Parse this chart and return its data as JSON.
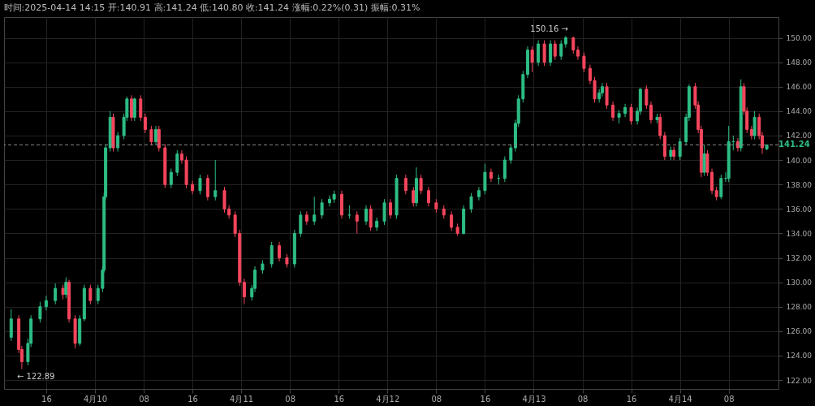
{
  "chart_data": {
    "type": "candlestick",
    "title": "时间:2025-04-14 14:15  开:140.91  高:141.24  低:140.80  收:141.24  涨幅:0.22%(0.31)  振幅:0.31%",
    "colors": [
      "#2ebd85",
      "#f6465d",
      "#f6465d",
      "#2ebd85",
      "#2ebd85",
      "#2ebd85",
      "#2ebd85",
      "#2ebd85",
      "#f6465d",
      "#2ebd85",
      "#f6465d",
      "#f6465d",
      "#2ebd85",
      "#2ebd85",
      "#f6465d",
      "#2ebd85",
      "#2ebd85",
      "#2ebd85",
      "#2ebd85",
      "#2ebd85",
      "#f6465d",
      "#2ebd85",
      "#2ebd85",
      "#2ebd85",
      "#f6465d",
      "#2ebd85",
      "#f6465d",
      "#f6465d",
      "#f6465d",
      "#2ebd85",
      "#f6465d",
      "#f6465d",
      "#2ebd85",
      "#2ebd85",
      "#f6465d",
      "#f6465d",
      "#f6465d",
      "#2ebd85",
      "#f6465d",
      "#2ebd85",
      "#f6465d",
      "#f6465d",
      "#f6465d",
      "#f6465d",
      "#f6465d",
      "#2ebd85",
      "#2ebd85",
      "#2ebd85",
      "#2ebd85",
      "#f6465d",
      "#f6465d",
      "#2ebd85",
      "#2ebd85",
      "#f6465d",
      "#2ebd85",
      "#2ebd85",
      "#2ebd85",
      "#2ebd85",
      "#f6465d",
      "#2ebd85",
      "#f6465d",
      "#2ebd85",
      "#f6465d",
      "#2ebd85",
      "#2ebd85",
      "#f6465d",
      "#2ebd85",
      "#f6465d",
      "#f6465d",
      "#2ebd85",
      "#f6465d",
      "#f6465d",
      "#f6465d",
      "#f6465d",
      "#f6465d",
      "#f6465d",
      "#2ebd85",
      "#2ebd85",
      "#2ebd85",
      "#2ebd85",
      "#f6465d",
      "#2ebd85",
      "#2ebd85",
      "#2ebd85",
      "#2ebd85",
      "#2ebd85",
      "#2ebd85",
      "#2ebd85",
      "#f6465d",
      "#2ebd85",
      "#f6465d",
      "#2ebd85",
      "#f6465d",
      "#2ebd85",
      "#2ebd85",
      "#f6465d",
      "#f6465d",
      "#f6465d",
      "#f6465d",
      "#f6465d",
      "#2ebd85",
      "#2ebd85",
      "#f6465d",
      "#f6465d",
      "#2ebd85",
      "#2ebd85",
      "#f6465d",
      "#2ebd85",
      "#2ebd85",
      "#f6465d",
      "#f6465d",
      "#2ebd85",
      "#f6465d",
      "#f6465d",
      "#2ebd85",
      "#f6465d",
      "#2ebd85",
      "#2ebd85",
      "#2ebd85",
      "#f6465d",
      "#f6465d",
      "#f6465d",
      "#2ebd85",
      "#f6465d",
      "#f6465d",
      "#f6465d",
      "#2ebd85",
      "#2ebd85",
      "#2ebd85",
      "#2ebd85",
      "#f6465d",
      "#2ebd85",
      "#f6465d",
      "#f6465d",
      "#f6465d",
      "#2ebd85",
      "#f6465d",
      "#f6465d",
      "#2ebd85"
    ],
    "x": [
      "2025-04-09T10:15",
      "2025-04-09T11:30",
      "2025-04-09T12:00",
      "2025-04-09T13:00",
      "2025-04-09T13:30",
      "2025-04-09T15:00",
      "2025-04-09T16:00",
      "2025-04-09T17:30",
      "2025-04-09T18:45",
      "2025-04-09T19:15",
      "2025-04-09T19:45",
      "2025-04-09T20:45",
      "2025-04-09T21:30",
      "2025-04-09T22:15",
      "2025-04-09T23:15",
      "2025-04-10T00:30",
      "2025-04-10T01:15",
      "2025-04-10T01:30",
      "2025-04-10T01:45",
      "2025-04-10T02:30",
      "2025-04-10T03:00",
      "2025-04-10T03:45",
      "2025-04-10T04:45",
      "2025-04-10T05:15",
      "2025-04-10T06:00",
      "2025-04-10T06:30",
      "2025-04-10T07:30",
      "2025-04-10T08:15",
      "2025-04-10T09:15",
      "2025-04-10T10:00",
      "2025-04-10T10:30",
      "2025-04-10T11:30",
      "2025-04-10T12:30",
      "2025-04-10T13:30",
      "2025-04-10T14:15",
      "2025-04-10T15:00",
      "2025-04-10T16:00",
      "2025-04-10T17:15",
      "2025-04-10T18:30",
      "2025-04-10T19:45",
      "2025-04-10T21:15",
      "2025-04-10T22:00",
      "2025-04-10T23:00",
      "2025-04-10T23:45",
      "2025-04-11T00:30",
      "2025-04-11T01:45",
      "2025-04-11T02:15",
      "2025-04-11T03:30",
      "2025-04-11T05:00",
      "2025-04-11T06:15",
      "2025-04-11T07:30",
      "2025-04-11T08:45",
      "2025-04-11T09:45",
      "2025-04-11T10:45",
      "2025-04-11T12:00",
      "2025-04-11T13:15",
      "2025-04-11T14:30",
      "2025-04-11T15:15",
      "2025-04-11T16:30",
      "2025-04-11T17:45",
      "2025-04-11T19:00",
      "2025-04-11T20:30",
      "2025-04-11T21:15",
      "2025-04-11T22:15",
      "2025-04-11T23:30",
      "2025-04-12T00:30",
      "2025-04-12T01:30",
      "2025-04-12T03:00",
      "2025-04-12T04:15",
      "2025-04-12T04:45",
      "2025-04-12T05:30",
      "2025-04-12T06:45",
      "2025-04-12T08:00",
      "2025-04-12T09:15",
      "2025-04-12T10:30",
      "2025-04-12T11:30",
      "2025-04-12T12:30",
      "2025-04-12T13:45",
      "2025-04-12T15:00",
      "2025-04-12T16:00",
      "2025-04-12T17:00",
      "2025-04-12T18:15",
      "2025-04-12T19:15",
      "2025-04-12T20:15",
      "2025-04-12T21:00",
      "2025-04-12T21:30",
      "2025-04-12T22:15",
      "2025-04-12T23:00",
      "2025-04-12T23:45",
      "2025-04-13T00:45",
      "2025-04-13T01:45",
      "2025-04-13T02:45",
      "2025-04-13T03:30",
      "2025-04-13T04:30",
      "2025-04-13T05:15",
      "2025-04-13T06:30",
      "2025-04-13T07:15",
      "2025-04-13T08:15",
      "2025-04-13T09:15",
      "2025-04-13T10:00",
      "2025-04-13T10:45",
      "2025-04-13T11:15",
      "2025-04-13T12:00",
      "2025-04-13T13:00",
      "2025-04-13T14:00",
      "2025-04-13T15:00",
      "2025-04-13T16:00",
      "2025-04-13T17:00",
      "2025-04-13T17:30",
      "2025-04-13T18:30",
      "2025-04-13T19:15",
      "2025-04-13T20:15",
      "2025-04-13T20:45",
      "2025-04-13T21:30",
      "2025-04-13T22:30",
      "2025-04-13T23:00",
      "2025-04-14T00:00",
      "2025-04-14T01:00",
      "2025-04-14T01:30",
      "2025-04-14T02:30",
      "2025-04-14T03:00",
      "2025-04-14T03:30",
      "2025-04-14T04:00",
      "2025-04-14T04:30",
      "2025-04-14T05:15",
      "2025-04-14T06:00",
      "2025-04-14T06:45",
      "2025-04-14T07:30",
      "2025-04-14T08:00",
      "2025-04-14T08:45",
      "2025-04-14T09:30",
      "2025-04-14T10:00",
      "2025-04-14T10:30",
      "2025-04-14T11:00",
      "2025-04-14T11:45",
      "2025-04-14T12:15",
      "2025-04-14T13:00",
      "2025-04-14T13:30",
      "2025-04-14T14:15"
    ],
    "ohlc": [
      [
        125.5,
        127.8,
        125.2,
        127
      ],
      [
        127,
        127.3,
        124.2,
        124.5
      ],
      [
        124.5,
        124.8,
        122.89,
        123.5
      ],
      [
        123.5,
        125.4,
        123.2,
        125
      ],
      [
        125,
        127.3,
        124.7,
        127
      ],
      [
        127,
        128.4,
        126.7,
        128
      ],
      [
        128,
        128.9,
        127.7,
        128.5
      ],
      [
        128.5,
        129.9,
        128.2,
        129.5
      ],
      [
        129.5,
        129.8,
        128.6,
        129
      ],
      [
        129,
        130.4,
        128.7,
        130
      ],
      [
        130,
        130.2,
        126.7,
        127
      ],
      [
        127,
        127.3,
        124.6,
        125
      ],
      [
        125,
        127.3,
        124.8,
        127
      ],
      [
        127,
        129.8,
        126.8,
        129.5
      ],
      [
        129.5,
        129.8,
        128.2,
        128.5
      ],
      [
        128.5,
        129.8,
        128.2,
        129.5
      ],
      [
        129.5,
        131.3,
        129.2,
        131
      ],
      [
        131,
        137.3,
        130.8,
        137
      ],
      [
        137,
        141.3,
        136.8,
        141
      ],
      [
        141,
        144,
        140.7,
        143.5
      ],
      [
        143.5,
        143.8,
        140.7,
        141
      ],
      [
        141,
        142.3,
        140.7,
        142
      ],
      [
        142,
        143.8,
        141.7,
        143.5
      ],
      [
        143.5,
        145.2,
        143.2,
        145
      ],
      [
        145,
        145.3,
        143.2,
        143.5
      ],
      [
        143.5,
        145.1,
        143.2,
        145
      ],
      [
        145,
        145.3,
        143.2,
        143.5
      ],
      [
        143.5,
        143.8,
        142.2,
        142.5
      ],
      [
        142.5,
        142.8,
        141.2,
        141.5
      ],
      [
        141.5,
        142.8,
        141.2,
        142.5
      ],
      [
        142.5,
        142.8,
        140.7,
        141
      ],
      [
        141,
        141.3,
        137.7,
        138
      ],
      [
        138,
        139.3,
        137.7,
        139
      ],
      [
        139,
        140.8,
        138.7,
        140.5
      ],
      [
        140.5,
        140.8,
        139.7,
        140
      ],
      [
        140,
        140.3,
        137.7,
        138
      ],
      [
        138,
        138.3,
        137.2,
        137.5
      ],
      [
        137.5,
        138.8,
        137.2,
        138.5
      ],
      [
        138.5,
        138.8,
        136.7,
        137
      ],
      [
        137,
        140,
        136.7,
        137.5
      ],
      [
        137.5,
        137.8,
        135.7,
        136
      ],
      [
        136,
        136.3,
        135.2,
        135.5
      ],
      [
        135.5,
        135.8,
        133.7,
        134
      ],
      [
        134,
        134.3,
        129.7,
        130
      ],
      [
        130,
        130.3,
        128.2,
        128.8
      ],
      [
        128.8,
        129.8,
        128.5,
        129.5
      ],
      [
        129.5,
        131.3,
        129.2,
        131
      ],
      [
        131,
        131.8,
        130.7,
        131.5
      ],
      [
        131.5,
        133.3,
        131.2,
        133
      ],
      [
        133,
        133.3,
        131.7,
        132
      ],
      [
        132,
        132.3,
        131.2,
        131.5
      ],
      [
        131.5,
        134.3,
        131.2,
        134
      ],
      [
        134,
        135.8,
        133.7,
        135.5
      ],
      [
        135.5,
        135.8,
        134.7,
        135
      ],
      [
        135,
        137,
        134.7,
        135.5
      ],
      [
        135.5,
        136.8,
        135.2,
        136.5
      ],
      [
        136.5,
        137.1,
        136.2,
        136.8
      ],
      [
        136.8,
        137.5,
        136.5,
        137.2
      ],
      [
        137.2,
        137.5,
        135.2,
        135.5
      ],
      [
        135.5,
        136.3,
        135.2,
        135.5
      ],
      [
        135.5,
        135.8,
        134,
        135
      ],
      [
        135,
        136.3,
        134.7,
        136
      ],
      [
        136,
        136.3,
        134.2,
        134.5
      ],
      [
        134.5,
        135.3,
        134.2,
        135
      ],
      [
        135,
        136.8,
        134.7,
        136.5
      ],
      [
        136.5,
        136.8,
        135.2,
        135.5
      ],
      [
        135.5,
        138.8,
        135.2,
        138.5
      ],
      [
        138.5,
        138.8,
        137.2,
        137.5
      ],
      [
        137.5,
        137.8,
        136.2,
        136.5
      ],
      [
        136.5,
        139.4,
        136.2,
        138.5
      ],
      [
        138.5,
        138.8,
        137.2,
        137.5
      ],
      [
        137.5,
        137.8,
        136.2,
        136.5
      ],
      [
        136.5,
        136.8,
        135.7,
        136
      ],
      [
        136,
        136.3,
        135.2,
        135.5
      ],
      [
        135.5,
        135.8,
        134.2,
        134.5
      ],
      [
        134.5,
        134.8,
        133.8,
        134
      ],
      [
        134,
        136.3,
        133.9,
        136
      ],
      [
        136,
        137.3,
        135.7,
        137
      ],
      [
        137,
        137.8,
        136.7,
        137.5
      ],
      [
        137.5,
        139.7,
        137.2,
        139
      ],
      [
        139,
        139.3,
        138.2,
        138.5
      ],
      [
        138.5,
        138.8,
        138,
        138.5
      ],
      [
        138.5,
        140.3,
        138.2,
        140
      ],
      [
        140,
        141.3,
        139.7,
        141
      ],
      [
        141,
        143.3,
        140.7,
        143
      ],
      [
        143,
        145.3,
        142.7,
        145
      ],
      [
        145,
        147.3,
        144.7,
        147
      ],
      [
        147,
        149.3,
        146.7,
        149
      ],
      [
        149,
        149.3,
        147.2,
        148
      ],
      [
        148,
        149.8,
        147.7,
        149.5
      ],
      [
        149.5,
        149.8,
        147.7,
        148
      ],
      [
        148,
        149.8,
        147.7,
        149.5
      ],
      [
        149.5,
        149.8,
        148.2,
        148.5
      ],
      [
        148.5,
        149.8,
        148.2,
        149.5
      ],
      [
        149.5,
        150.16,
        149.2,
        150
      ],
      [
        150,
        150.1,
        148.7,
        149
      ],
      [
        149,
        149.3,
        148.2,
        148.5
      ],
      [
        148.5,
        148.8,
        147.2,
        147.5
      ],
      [
        147.5,
        147.8,
        146.2,
        146.5
      ],
      [
        146.5,
        146.8,
        144.7,
        145
      ],
      [
        145,
        145.8,
        144.7,
        145.5
      ],
      [
        145.5,
        146.3,
        145.2,
        146
      ],
      [
        146,
        146.3,
        144.2,
        144.5
      ],
      [
        144.5,
        144.8,
        143.2,
        143.5
      ],
      [
        143.5,
        144.1,
        143,
        143.8
      ],
      [
        143.8,
        144.6,
        143.5,
        144.3
      ],
      [
        144.3,
        144.6,
        142.9,
        143.2
      ],
      [
        143.2,
        144.3,
        142.9,
        144
      ],
      [
        144,
        145.9,
        143.7,
        145.8
      ],
      [
        145.8,
        146.1,
        144.2,
        144.5
      ],
      [
        144.5,
        144.8,
        143,
        143.3
      ],
      [
        143.3,
        143.8,
        143,
        143.5
      ],
      [
        143.5,
        143.8,
        141.7,
        142
      ],
      [
        142,
        142.3,
        140,
        140.3
      ],
      [
        140.3,
        141.1,
        140,
        140.8
      ],
      [
        140.8,
        141.1,
        140,
        140.3
      ],
      [
        140.3,
        141.8,
        140,
        141.5
      ],
      [
        141.5,
        143.8,
        141.2,
        143.5
      ],
      [
        143.5,
        146.2,
        143.2,
        146
      ],
      [
        146,
        146.3,
        144.2,
        144.5
      ],
      [
        144.5,
        144.8,
        142.2,
        142.5
      ],
      [
        142.5,
        142.8,
        138.6,
        139
      ],
      [
        139,
        141.2,
        138.7,
        140.5
      ],
      [
        140.5,
        140.8,
        138.7,
        139
      ],
      [
        139,
        139.3,
        137.2,
        137.5
      ],
      [
        137.5,
        137.8,
        136.7,
        137
      ],
      [
        137,
        138.8,
        136.8,
        138.5
      ],
      [
        138.5,
        139,
        138.2,
        138.5
      ],
      [
        138.5,
        142.8,
        138.2,
        141.5
      ],
      [
        141.5,
        142,
        140.8,
        141.5
      ],
      [
        141.5,
        141.8,
        140.7,
        141
      ],
      [
        141,
        146.6,
        140.7,
        146
      ],
      [
        146,
        146.3,
        143.7,
        144
      ],
      [
        144,
        144.3,
        142.2,
        142.5
      ],
      [
        142.5,
        142.8,
        141.7,
        142
      ],
      [
        142,
        144,
        141.7,
        143.5
      ],
      [
        143.5,
        143.8,
        141.7,
        142
      ],
      [
        142,
        142.3,
        140.5,
        141
      ],
      [
        140.91,
        141.24,
        140.8,
        141.24
      ]
    ],
    "xlim": [
      "2025-04-09T09:45",
      "2025-04-14T15:30"
    ],
    "xticks": [
      {
        "value": "2025-04-09T16:00",
        "label": "16"
      },
      {
        "value": "2025-04-10",
        "label": "4月10"
      },
      {
        "value": "2025-04-10T08:00",
        "label": "08"
      },
      {
        "value": "2025-04-10T16:00",
        "label": "16"
      },
      {
        "value": "2025-04-11",
        "label": "4月11"
      },
      {
        "value": "2025-04-11T08:00",
        "label": "08"
      },
      {
        "value": "2025-04-11T16:00",
        "label": "16"
      },
      {
        "value": "2025-04-12",
        "label": "4月12"
      },
      {
        "value": "2025-04-12T08:00",
        "label": "08"
      },
      {
        "value": "2025-04-12T16:00",
        "label": "16"
      },
      {
        "value": "2025-04-13",
        "label": "4月13"
      },
      {
        "value": "2025-04-13T08:00",
        "label": "08"
      },
      {
        "value": "2025-04-13T16:00",
        "label": "16"
      },
      {
        "value": "2025-04-14",
        "label": "4月14"
      },
      {
        "value": "2025-04-14T08:00",
        "label": "08"
      }
    ],
    "ylim": [
      121.27,
      151.7
    ],
    "yticks": [
      {
        "value": 122,
        "label": "122.00"
      },
      {
        "value": 124,
        "label": "124.00"
      },
      {
        "value": 126,
        "label": "126.00"
      },
      {
        "value": 128,
        "label": "128.00"
      },
      {
        "value": 130,
        "label": "130.00"
      },
      {
        "value": 132,
        "label": "132.00"
      },
      {
        "value": 134,
        "label": "134.00"
      },
      {
        "value": 136,
        "label": "136.00"
      },
      {
        "value": 138,
        "label": "138.00"
      },
      {
        "value": 140,
        "label": "140.00"
      },
      {
        "value": 142,
        "label": "142.00"
      },
      {
        "value": 144,
        "label": "144.00"
      },
      {
        "value": 146,
        "label": "146.00"
      },
      {
        "value": 148,
        "label": "148.00"
      },
      {
        "value": 150,
        "label": "150.00"
      }
    ],
    "ref_lines": [
      {
        "axis": "y",
        "value": 141.24,
        "label": "141.24",
        "color": "#888888",
        "line_style": "dashed"
      }
    ],
    "annotations": [
      {
        "text": "150.16 →",
        "x": "2025-04-13T05:15",
        "y": 150.16
      },
      {
        "text": "← 122.89",
        "x": "2025-04-09T12:00",
        "y": 122.89
      }
    ],
    "grid": true
  }
}
